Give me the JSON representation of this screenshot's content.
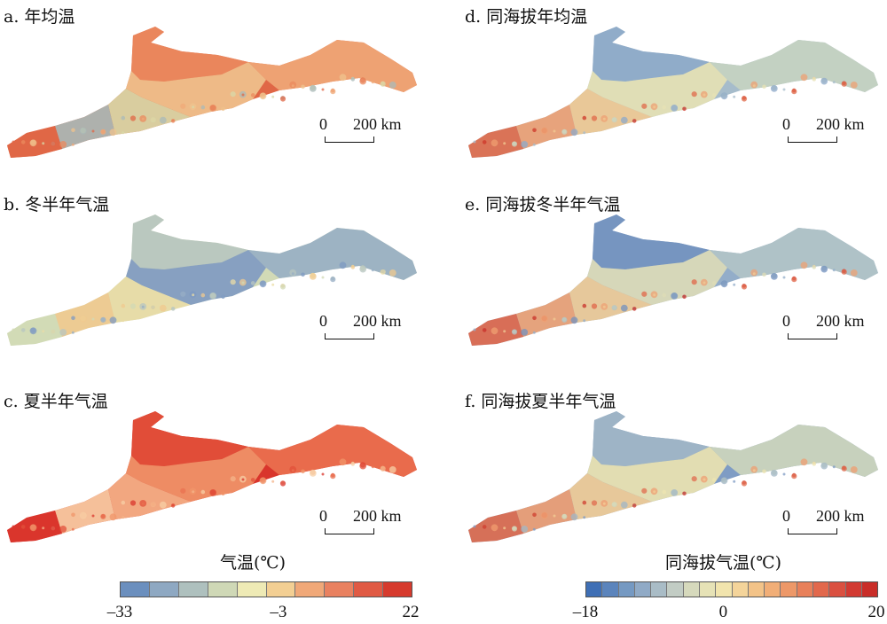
{
  "panels": [
    {
      "id": "a",
      "title": "a. 年均温",
      "palette": [
        "#e06746",
        "#eb8a5e",
        "#f0a978",
        "#efc38e",
        "#d8d8a8",
        "#a9b9b8"
      ]
    },
    {
      "id": "b",
      "title": "b. 冬半年气温",
      "palette": [
        "#d2dab6",
        "#b7c5c0",
        "#97aec4",
        "#7e99c2",
        "#e9dca6",
        "#f0c98f"
      ]
    },
    {
      "id": "c",
      "title": "c. 夏半年气温",
      "palette": [
        "#d9352c",
        "#e1503a",
        "#ea7150",
        "#f0966a",
        "#f4b489",
        "#f7cfa6"
      ]
    },
    {
      "id": "d",
      "title": "d. 同海拔年均温",
      "palette": [
        "#a6bccb",
        "#8eaac9",
        "#c7d3c1",
        "#e7e1b4",
        "#f1c992",
        "#eea073",
        "#e06a4a",
        "#cd3528"
      ]
    },
    {
      "id": "e",
      "title": "e. 同海拔冬半年气温",
      "palette": [
        "#93adc9",
        "#7392bf",
        "#b2c4c6",
        "#dedcb7",
        "#f0cb96",
        "#eea274",
        "#e0674a",
        "#c8302a"
      ]
    },
    {
      "id": "f",
      "title": "f. 同海拔夏半年气温",
      "palette": [
        "#7f9cc4",
        "#a2b7c6",
        "#cfd7bd",
        "#ede4b0",
        "#f3cd96",
        "#ef9e72",
        "#e06b4d",
        "#cf3d2f"
      ]
    }
  ],
  "scalebar": {
    "zero": "0",
    "max": "200 km"
  },
  "legend_left": {
    "title": "气温(℃)",
    "colors": [
      "#6b8fbe",
      "#8ea8c2",
      "#aec0be",
      "#cfd8b6",
      "#eeeab5",
      "#f3cf93",
      "#f0a878",
      "#e98160",
      "#e05a44",
      "#d63a2d"
    ],
    "ticks": [
      "–33",
      "–3",
      "22"
    ],
    "values": [
      -33,
      -3,
      22
    ]
  },
  "legend_right": {
    "title": "同海拔气温(℃)",
    "colors": [
      "#3f6fb5",
      "#5b84bc",
      "#7599c2",
      "#90aac6",
      "#a9bcc6",
      "#c2ccc4",
      "#d6d9bc",
      "#e6e2b6",
      "#f1e4ad",
      "#f4d49a",
      "#f3c388",
      "#f1ae77",
      "#ed9868",
      "#e8805a",
      "#e2684c",
      "#da5040",
      "#d23a32",
      "#c92d28"
    ],
    "ticks": [
      "–18",
      "0",
      "20"
    ],
    "values": [
      -18,
      0,
      20
    ]
  }
}
